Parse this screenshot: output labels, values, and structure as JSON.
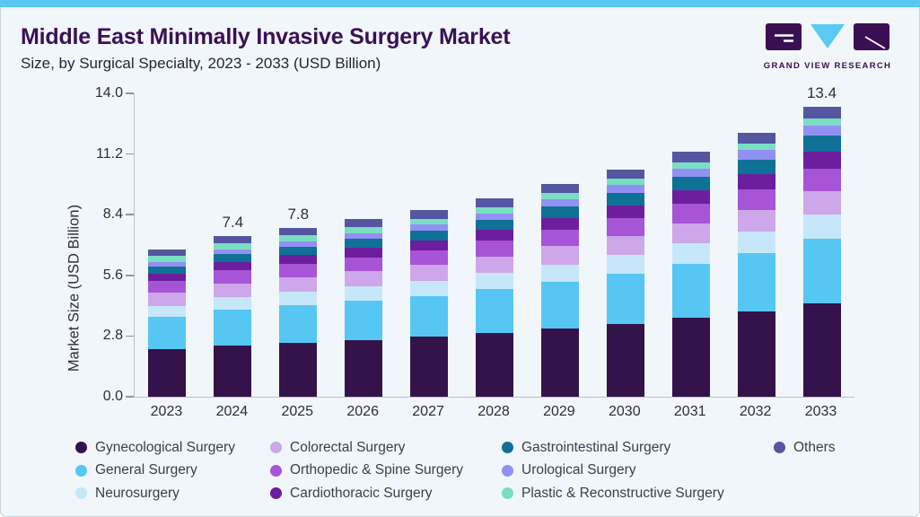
{
  "header": {
    "title": "Middle East Minimally Invasive Surgery Market",
    "subtitle": "Size, by Surgical Specialty, 2023 - 2033 (USD Billion)",
    "logo_text": "GRAND VIEW RESEARCH"
  },
  "colors": {
    "accent_bar": "#58C7F2",
    "title_text": "#3A1055",
    "subtitle_text": "#26262E",
    "axis_text": "#2E2E36",
    "axis_line": "#B9C3CA",
    "tick_mark": "#8D979F",
    "legend_text": "#3A3F49",
    "card_background": "#F1F6FA",
    "logo_purple": "#3A1055",
    "logo_cyan": "#5BC9F1"
  },
  "chart_data": {
    "type": "bar",
    "stacked": true,
    "title": "Middle East Minimally Invasive Surgery Market Size, by Surgical Specialty, 2023 - 2033 (USD Billion)",
    "xlabel": "",
    "ylabel": "Market Size (USD Billion)",
    "ylim": [
      0,
      14
    ],
    "yticks": [
      14.0,
      11.2,
      8.4,
      5.6,
      2.8,
      0.0
    ],
    "grid": false,
    "legend_position": "bottom",
    "categories": [
      "2023",
      "2024",
      "2025",
      "2026",
      "2027",
      "2028",
      "2029",
      "2030",
      "2031",
      "2032",
      "2033"
    ],
    "bar_total_labels": [
      "",
      "7.4",
      "7.8",
      "",
      "",
      "",
      "",
      "",
      "",
      "",
      "13.4"
    ],
    "totals": [
      6.8,
      7.4,
      7.8,
      8.2,
      8.6,
      9.15,
      9.8,
      10.5,
      11.3,
      12.2,
      13.4
    ],
    "series": [
      {
        "name": "Gynecological Surgery",
        "color": "#34124A",
        "values": [
          2.18,
          2.38,
          2.5,
          2.63,
          2.76,
          2.94,
          3.15,
          3.37,
          3.63,
          3.92,
          4.3
        ]
      },
      {
        "name": "General Surgery",
        "color": "#56C7F2",
        "values": [
          1.49,
          1.63,
          1.72,
          1.8,
          1.89,
          2.02,
          2.16,
          2.32,
          2.5,
          2.7,
          2.97
        ]
      },
      {
        "name": "Neurosurgery",
        "color": "#C6E7F9",
        "values": [
          0.52,
          0.57,
          0.61,
          0.65,
          0.69,
          0.74,
          0.8,
          0.86,
          0.94,
          1.02,
          1.13
        ]
      },
      {
        "name": "Colorectal Surgery",
        "color": "#CDA7E9",
        "values": [
          0.61,
          0.66,
          0.69,
          0.71,
          0.74,
          0.78,
          0.83,
          0.88,
          0.93,
          0.99,
          1.08
        ]
      },
      {
        "name": "Orthopedic & Spine Surgery",
        "color": "#A754D6",
        "values": [
          0.54,
          0.59,
          0.62,
          0.65,
          0.68,
          0.72,
          0.77,
          0.83,
          0.89,
          0.96,
          1.05
        ]
      },
      {
        "name": "Cardiothoracic Surgery",
        "color": "#6C1E9F",
        "values": [
          0.34,
          0.37,
          0.4,
          0.43,
          0.45,
          0.49,
          0.53,
          0.57,
          0.63,
          0.68,
          0.76
        ]
      },
      {
        "name": "Gastrointestinal Surgery",
        "color": "#0F7195",
        "values": [
          0.34,
          0.37,
          0.4,
          0.43,
          0.45,
          0.48,
          0.53,
          0.57,
          0.62,
          0.68,
          0.75
        ]
      },
      {
        "name": "Urological Surgery",
        "color": "#9290F3",
        "values": [
          0.2,
          0.22,
          0.24,
          0.26,
          0.28,
          0.3,
          0.33,
          0.36,
          0.39,
          0.43,
          0.48
        ]
      },
      {
        "name": "Plastic & Reconstructive Surgery",
        "color": "#7ADEC2",
        "values": [
          0.27,
          0.28,
          0.28,
          0.28,
          0.28,
          0.29,
          0.29,
          0.29,
          0.3,
          0.3,
          0.31
        ]
      },
      {
        "name": "Others",
        "color": "#5556A1",
        "values": [
          0.3,
          0.33,
          0.34,
          0.36,
          0.38,
          0.39,
          0.41,
          0.45,
          0.47,
          0.52,
          0.57
        ]
      }
    ]
  },
  "legend": {
    "rows": [
      [
        "Gynecological Surgery",
        "Colorectal Surgery",
        "Gastrointestinal Surgery",
        "Others"
      ],
      [
        "General Surgery",
        "Orthopedic & Spine Surgery",
        "Urological Surgery"
      ],
      [
        "Neurosurgery",
        "Cardiothoracic Surgery",
        "Plastic & Reconstructive Surgery"
      ]
    ]
  }
}
